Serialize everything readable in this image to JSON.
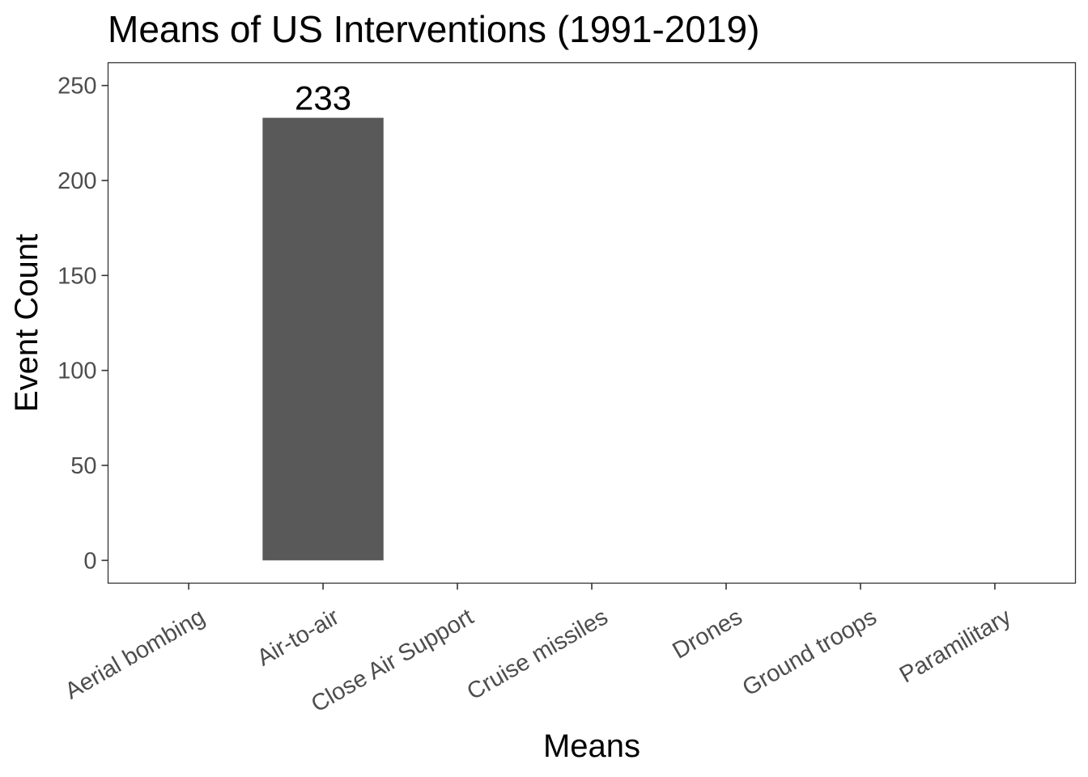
{
  "chart_data": {
    "type": "bar",
    "title": "Means of US Interventions (1991-2019)",
    "xlabel": "Means",
    "ylabel": "Event Count",
    "categories": [
      "Aerial bombing",
      "Air-to-air",
      "Close Air Support",
      "Cruise missiles",
      "Drones",
      "Ground troops",
      "Paramilitary"
    ],
    "values": [
      null,
      233,
      null,
      null,
      null,
      null,
      null
    ],
    "data_labels": [
      "",
      "233",
      "",
      "",
      "",
      "",
      ""
    ],
    "yticks": [
      0,
      50,
      100,
      150,
      200,
      250
    ],
    "ylim": [
      -12,
      262
    ],
    "grid": false,
    "legend": "none",
    "colors": {
      "bar": "#595959",
      "panel_border": "#333333",
      "tick_label": "#4d4d4d"
    }
  }
}
